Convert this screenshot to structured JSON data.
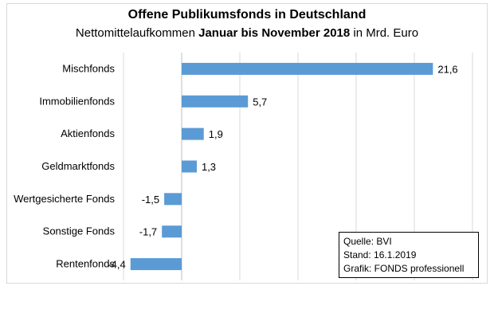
{
  "chart_data": {
    "type": "bar",
    "orientation": "horizontal",
    "title": "Offene Publikumsfonds  in Deutschland",
    "subtitle_prefix": "Nettomittelaufkommen ",
    "subtitle_bold": "Januar bis November 2018",
    "subtitle_suffix": " in Mrd. Euro",
    "categories": [
      "Mischfonds",
      "Immobilienfonds",
      "Aktienfonds",
      "Geldmarktfonds",
      "Wertgesicherte Fonds",
      "Sonstige Fonds",
      "Rentenfonds"
    ],
    "values": [
      21.6,
      5.7,
      1.9,
      1.3,
      -1.5,
      -1.7,
      -4.4
    ],
    "value_labels": [
      "21,6",
      "5,7",
      "1,9",
      "1,3",
      "-1,5",
      "-1,7",
      "-4,4"
    ],
    "xlim": [
      -5,
      25
    ],
    "grid": "vertical",
    "bar_color": "#5b9bd5"
  },
  "source_box": {
    "line1": "Quelle: BVI",
    "line2": "Stand: 16.1.2019",
    "line3": "Grafik: FONDS professionell"
  }
}
